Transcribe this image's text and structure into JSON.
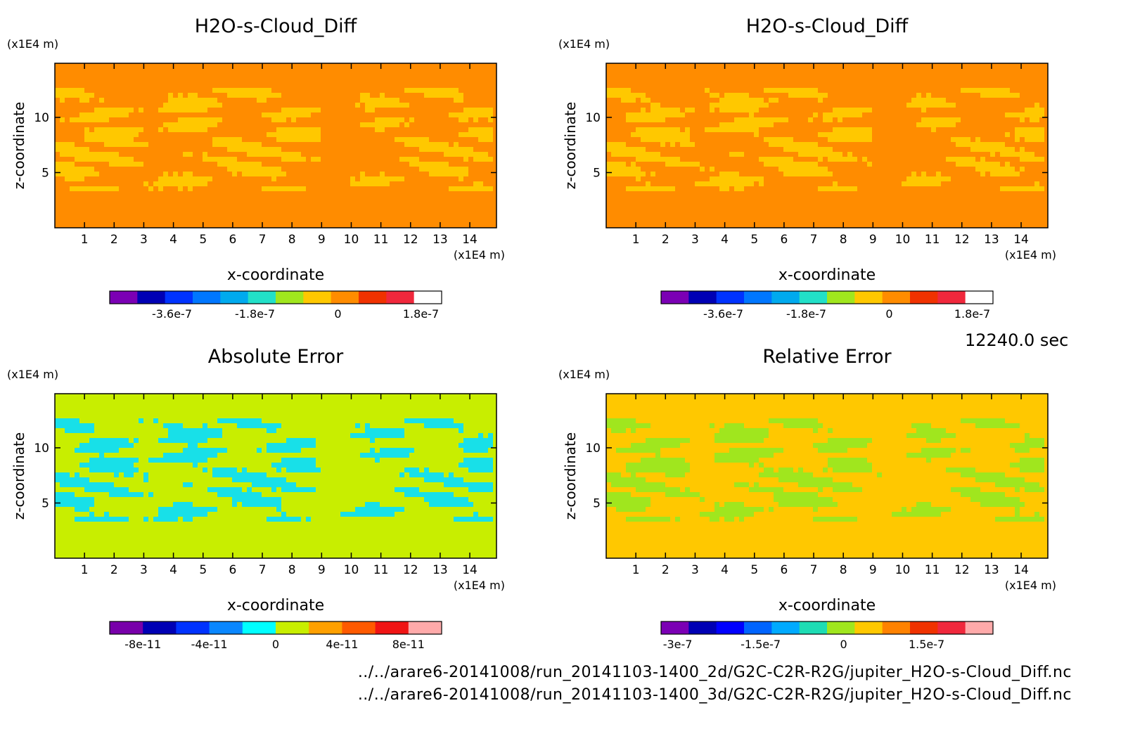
{
  "timestamp": "12240.0 sec",
  "footer": {
    "path_2d": "../../arare6-20141008/run_20141103-1400_2d/G2C-C2R-R2G/jupiter_H2O-s-Cloud_Diff.nc",
    "path_3d": "../../arare6-20141008/run_20141103-1400_3d/G2C-C2R-R2G/jupiter_H2O-s-Cloud_Diff.nc"
  },
  "chart_data": [
    {
      "type": "heatmap",
      "title": "H2O-s-Cloud_Diff",
      "xlabel": "x-coordinate",
      "ylabel": "z-coordinate",
      "x_unit": "(x1E4 m)",
      "y_unit": "(x1E4 m)",
      "xlim": [
        0,
        14.9
      ],
      "ylim": [
        0,
        14.9
      ],
      "x_ticks": [
        1,
        2,
        3,
        4,
        5,
        6,
        7,
        8,
        9,
        10,
        11,
        12,
        13,
        14
      ],
      "y_ticks": [
        5,
        10
      ],
      "background_color": "#ff8c00",
      "pattern_color": "#ffc800",
      "colorbar": {
        "colors": [
          "#7b00b4",
          "#0000b4",
          "#0033ff",
          "#0077ff",
          "#00aaee",
          "#22e0c8",
          "#a0e61e",
          "#ffc800",
          "#ff8c00",
          "#f03200",
          "#f0283c",
          "#ffffff"
        ],
        "tick_labels": [
          "-3.6e-7",
          "-1.8e-7",
          "0",
          "1.8e-7"
        ],
        "tick_values": [
          -3.6e-07,
          -1.8e-07,
          0,
          1.8e-07
        ],
        "range": [
          -4.95e-07,
          2.25e-07
        ]
      }
    },
    {
      "type": "heatmap",
      "title": "H2O-s-Cloud_Diff",
      "xlabel": "x-coordinate",
      "ylabel": "z-coordinate",
      "x_unit": "(x1E4 m)",
      "y_unit": "(x1E4 m)",
      "xlim": [
        0,
        14.9
      ],
      "ylim": [
        0,
        14.9
      ],
      "x_ticks": [
        1,
        2,
        3,
        4,
        5,
        6,
        7,
        8,
        9,
        10,
        11,
        12,
        13,
        14
      ],
      "y_ticks": [
        5,
        10
      ],
      "background_color": "#ff8c00",
      "pattern_color": "#ffc800",
      "colorbar": {
        "colors": [
          "#7b00b4",
          "#0000b4",
          "#0033ff",
          "#0077ff",
          "#00aaee",
          "#22e0c8",
          "#a0e61e",
          "#ffc800",
          "#ff8c00",
          "#f03200",
          "#f0283c",
          "#ffffff"
        ],
        "tick_labels": [
          "-3.6e-7",
          "-1.8e-7",
          "0",
          "1.8e-7"
        ],
        "tick_values": [
          -3.6e-07,
          -1.8e-07,
          0,
          1.8e-07
        ],
        "range": [
          -4.95e-07,
          2.25e-07
        ]
      }
    },
    {
      "type": "heatmap",
      "title": "Absolute Error",
      "xlabel": "x-coordinate",
      "ylabel": "z-coordinate",
      "x_unit": "(x1E4 m)",
      "y_unit": "(x1E4 m)",
      "xlim": [
        0,
        14.9
      ],
      "ylim": [
        0,
        14.9
      ],
      "x_ticks": [
        1,
        2,
        3,
        4,
        5,
        6,
        7,
        8,
        9,
        10,
        11,
        12,
        13,
        14
      ],
      "y_ticks": [
        5,
        10
      ],
      "background_color": "#c8ee00",
      "pattern_color": "#18e0e8",
      "colorbar": {
        "colors": [
          "#7800aa",
          "#0000b4",
          "#0032ff",
          "#0a87ff",
          "#00ffff",
          "#c8ee00",
          "#ffa000",
          "#ff5a00",
          "#f01414",
          "#ffaaaa"
        ],
        "tick_labels": [
          "-8e-11",
          "-4e-11",
          "0",
          "4e-11",
          "8e-11"
        ],
        "tick_values": [
          -8e-11,
          -4e-11,
          0,
          4e-11,
          8e-11
        ],
        "range": [
          -1e-10,
          1e-10
        ]
      }
    },
    {
      "type": "heatmap",
      "title": "Relative Error",
      "xlabel": "x-coordinate",
      "ylabel": "z-coordinate",
      "x_unit": "(x1E4 m)",
      "y_unit": "(x1E4 m)",
      "xlim": [
        0,
        14.9
      ],
      "ylim": [
        0,
        14.9
      ],
      "x_ticks": [
        1,
        2,
        3,
        4,
        5,
        6,
        7,
        8,
        9,
        10,
        11,
        12,
        13,
        14
      ],
      "y_ticks": [
        5,
        10
      ],
      "background_color": "#ffc800",
      "pattern_color": "#a0e61e",
      "colorbar": {
        "colors": [
          "#7b00b4",
          "#0000b4",
          "#0000ff",
          "#0064ff",
          "#00aaff",
          "#1edcb4",
          "#a0e61e",
          "#ffc800",
          "#ff8200",
          "#f03200",
          "#f0283c",
          "#ffaaaa"
        ],
        "tick_labels": [
          "-3e-7",
          "-1.5e-7",
          "0",
          "1.5e-7"
        ],
        "tick_values": [
          -3e-07,
          -1.5e-07,
          0,
          1.5e-07
        ],
        "range": [
          -3.3e-07,
          2.7e-07
        ]
      }
    }
  ]
}
